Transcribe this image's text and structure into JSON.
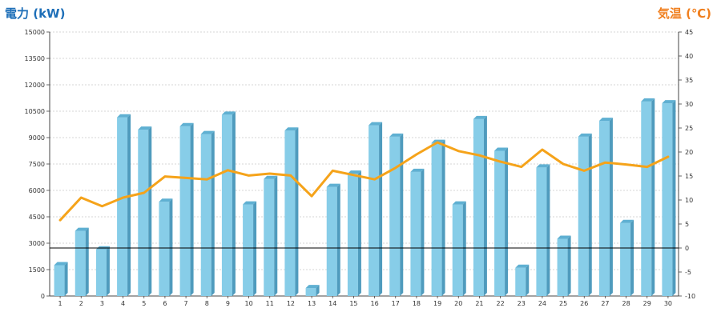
{
  "chart_data": {
    "type": "bar",
    "title": "",
    "xlabel": "",
    "categories": [
      "1",
      "2",
      "3",
      "4",
      "5",
      "6",
      "7",
      "8",
      "9",
      "10",
      "11",
      "12",
      "13",
      "14",
      "15",
      "16",
      "17",
      "18",
      "19",
      "20",
      "21",
      "22",
      "23",
      "24",
      "25",
      "26",
      "27",
      "28",
      "29",
      "30"
    ],
    "ylabel_left": "電力 (kW)",
    "ylabel_right": "気温 (℃)",
    "ylim_left": [
      0,
      15000
    ],
    "ylim_right": [
      -10,
      45
    ],
    "yticks_left": [
      0,
      1500,
      3000,
      4500,
      6000,
      7500,
      9000,
      10500,
      12000,
      13500,
      15000
    ],
    "yticks_right": [
      -10,
      -5,
      0,
      5,
      10,
      15,
      20,
      25,
      30,
      35,
      40,
      45
    ],
    "grid": true,
    "series": [
      {
        "type": "bar",
        "axis": "left",
        "color": "#87cde8",
        "values": [
          1750,
          3700,
          2650,
          10150,
          9450,
          5350,
          9650,
          9200,
          10300,
          5200,
          6650,
          9400,
          450,
          6200,
          6950,
          9700,
          9050,
          7050,
          8700,
          5200,
          10050,
          8250,
          1600,
          7300,
          3250,
          9050,
          9950,
          4150,
          11050,
          10950
        ]
      },
      {
        "type": "line",
        "axis": "right",
        "color": "#f5a31a",
        "values": [
          5.8,
          10.5,
          8.7,
          10.5,
          11.5,
          14.9,
          14.6,
          14.3,
          16.2,
          15.1,
          15.5,
          15.1,
          10.8,
          16.1,
          15.2,
          14.3,
          16.7,
          19.5,
          22.0,
          20.2,
          19.3,
          18.0,
          16.9,
          20.5,
          17.5,
          16.1,
          17.8,
          17.4,
          16.9,
          19.0
        ]
      }
    ]
  }
}
